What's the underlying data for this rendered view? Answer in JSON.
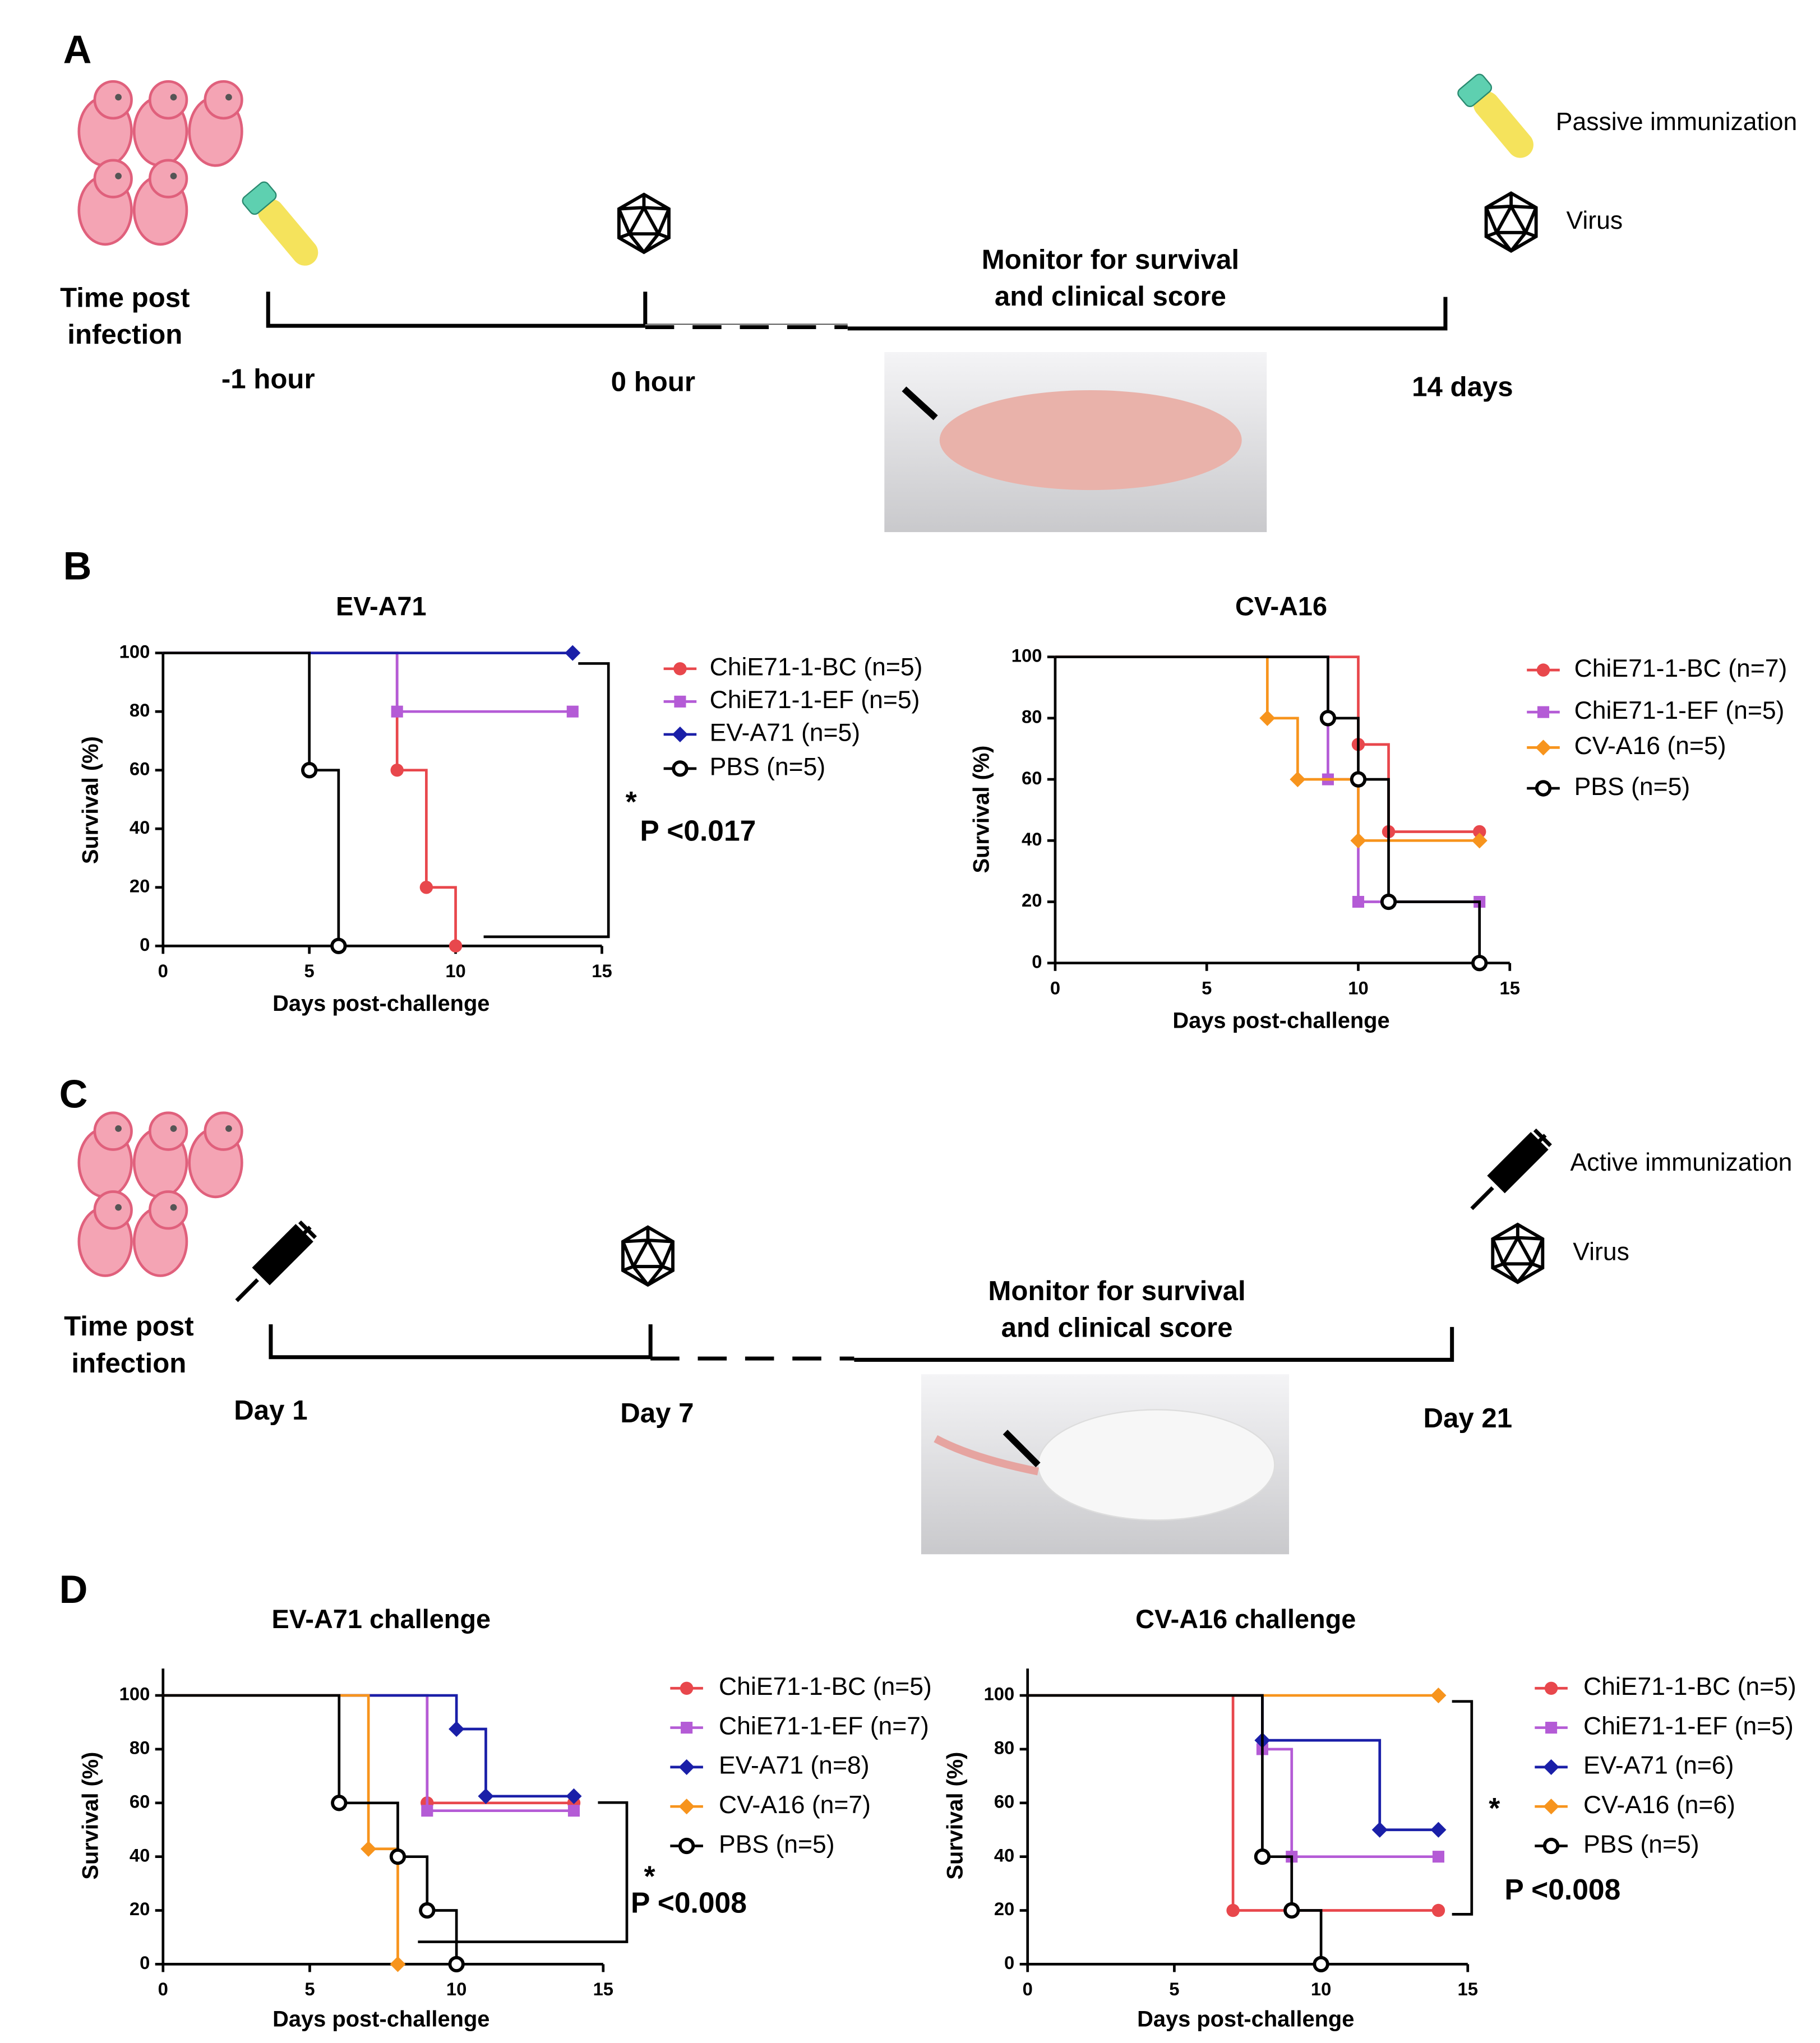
{
  "panels": {
    "A": {
      "letter": "A",
      "time_label": [
        "Time post",
        "infection"
      ],
      "t0": "-1 hour",
      "t1": "0 hour",
      "monitor": [
        "Monitor for survival",
        "and clinical score"
      ],
      "t2": "14 days",
      "legend_immunization": "Passive immunization",
      "legend_virus": "Virus"
    },
    "B": {
      "letter": "B"
    },
    "C": {
      "letter": "C",
      "time_label": [
        "Time post",
        "infection"
      ],
      "t0": "Day 1",
      "t1": "Day 7",
      "monitor": [
        "Monitor for survival",
        "and clinical score"
      ],
      "t2": "Day 21",
      "legend_immunization": "Active immunization",
      "legend_virus": "Virus"
    },
    "D": {
      "letter": "D"
    }
  },
  "chart_data": [
    {
      "type": "survival",
      "title": "EV-A71",
      "xlabel": "Days post-challenge",
      "ylabel": "Survival (%)",
      "xlim": [
        0,
        15
      ],
      "ylim": [
        0,
        100
      ],
      "xticks": [
        0,
        5,
        10,
        15
      ],
      "yticks": [
        0,
        20,
        40,
        60,
        80,
        100
      ],
      "annotations": [
        "*",
        "P <0.017"
      ],
      "series": [
        {
          "name": "ChiE71-1-BC (n=5)",
          "color": "#e8474c",
          "marker": "circle",
          "x": [
            0,
            8,
            9,
            10
          ],
          "values": [
            100,
            60,
            20,
            0
          ]
        },
        {
          "name": "ChiE71-1-EF (n=5)",
          "color": "#b45bd6",
          "marker": "square",
          "x": [
            0,
            8,
            14
          ],
          "values": [
            100,
            80,
            80
          ]
        },
        {
          "name": "EV-A71 (n=5)",
          "color": "#1a1fa8",
          "marker": "diamond",
          "x": [
            0,
            14
          ],
          "values": [
            100,
            100
          ]
        },
        {
          "name": "PBS (n=5)",
          "color": "#000000",
          "marker": "open-circle",
          "x": [
            0,
            5,
            6
          ],
          "values": [
            100,
            60,
            0
          ]
        }
      ]
    },
    {
      "type": "survival",
      "title": "CV-A16",
      "xlabel": "Days post-challenge",
      "ylabel": "Survival (%)",
      "xlim": [
        0,
        15
      ],
      "ylim": [
        0,
        100
      ],
      "xticks": [
        0,
        5,
        10,
        15
      ],
      "yticks": [
        0,
        20,
        40,
        60,
        80,
        100
      ],
      "series": [
        {
          "name": "ChiE71-1-BC (n=7)",
          "color": "#e8474c",
          "marker": "circle",
          "x": [
            0,
            10,
            11,
            14
          ],
          "values": [
            100,
            71.4,
            42.9,
            42.9
          ]
        },
        {
          "name": "ChiE71-1-EF (n=5)",
          "color": "#b45bd6",
          "marker": "square",
          "x": [
            0,
            9,
            10,
            14
          ],
          "values": [
            100,
            60,
            20,
            20
          ]
        },
        {
          "name": "CV-A16 (n=5)",
          "color": "#f7941d",
          "marker": "diamond",
          "x": [
            0,
            7,
            8,
            10,
            14
          ],
          "values": [
            100,
            80,
            60,
            40,
            40
          ]
        },
        {
          "name": "PBS (n=5)",
          "color": "#000000",
          "marker": "open-circle",
          "x": [
            0,
            9,
            10,
            11,
            14
          ],
          "values": [
            100,
            80,
            60,
            20,
            0
          ]
        }
      ]
    },
    {
      "type": "survival",
      "title": "EV-A71 challenge",
      "xlabel": "Days post-challenge",
      "ylabel": "Survival (%)",
      "xlim": [
        0,
        15
      ],
      "ylim": [
        0,
        110
      ],
      "xticks": [
        0,
        5,
        10,
        15
      ],
      "yticks": [
        0,
        20,
        40,
        60,
        80,
        100
      ],
      "annotations": [
        "*",
        "P <0.008"
      ],
      "series": [
        {
          "name": "ChiE71-1-BC (n=5)",
          "color": "#e8474c",
          "marker": "circle",
          "x": [
            0,
            9,
            14
          ],
          "values": [
            100,
            60,
            60
          ]
        },
        {
          "name": "ChiE71-1-EF (n=7)",
          "color": "#b45bd6",
          "marker": "square",
          "x": [
            0,
            9,
            14
          ],
          "values": [
            100,
            57.1,
            57.1
          ]
        },
        {
          "name": "EV-A71 (n=8)",
          "color": "#1a1fa8",
          "marker": "diamond",
          "x": [
            0,
            10,
            11,
            14
          ],
          "values": [
            100,
            87.5,
            62.5,
            62.5
          ]
        },
        {
          "name": "CV-A16 (n=7)",
          "color": "#f7941d",
          "marker": "diamond",
          "x": [
            0,
            7,
            8
          ],
          "values": [
            100,
            42.9,
            0
          ]
        },
        {
          "name": "PBS (n=5)",
          "color": "#000000",
          "marker": "open-circle",
          "x": [
            0,
            6,
            8,
            9,
            10
          ],
          "values": [
            100,
            60,
            40,
            20,
            0
          ]
        }
      ]
    },
    {
      "type": "survival",
      "title": "CV-A16 challenge",
      "xlabel": "Days post-challenge",
      "ylabel": "Survival (%)",
      "xlim": [
        0,
        15
      ],
      "ylim": [
        0,
        110
      ],
      "xticks": [
        0,
        5,
        10,
        15
      ],
      "yticks": [
        0,
        20,
        40,
        60,
        80,
        100
      ],
      "annotations": [
        "*",
        "P <0.008"
      ],
      "series": [
        {
          "name": "ChiE71-1-BC (n=5)",
          "color": "#e8474c",
          "marker": "circle",
          "x": [
            0,
            7,
            14
          ],
          "values": [
            100,
            20,
            20
          ]
        },
        {
          "name": "ChiE71-1-EF (n=5)",
          "color": "#b45bd6",
          "marker": "square",
          "x": [
            0,
            8,
            9,
            14
          ],
          "values": [
            100,
            80,
            40,
            40
          ]
        },
        {
          "name": "EV-A71 (n=6)",
          "color": "#1a1fa8",
          "marker": "diamond",
          "x": [
            0,
            8,
            12,
            14
          ],
          "values": [
            100,
            83.3,
            50,
            50
          ]
        },
        {
          "name": "CV-A16 (n=6)",
          "color": "#f7941d",
          "marker": "diamond",
          "x": [
            0,
            14
          ],
          "values": [
            100,
            100
          ]
        },
        {
          "name": "PBS (n=5)",
          "color": "#000000",
          "marker": "open-circle",
          "x": [
            0,
            8,
            9,
            10
          ],
          "values": [
            100,
            40,
            20,
            0
          ]
        }
      ]
    }
  ]
}
